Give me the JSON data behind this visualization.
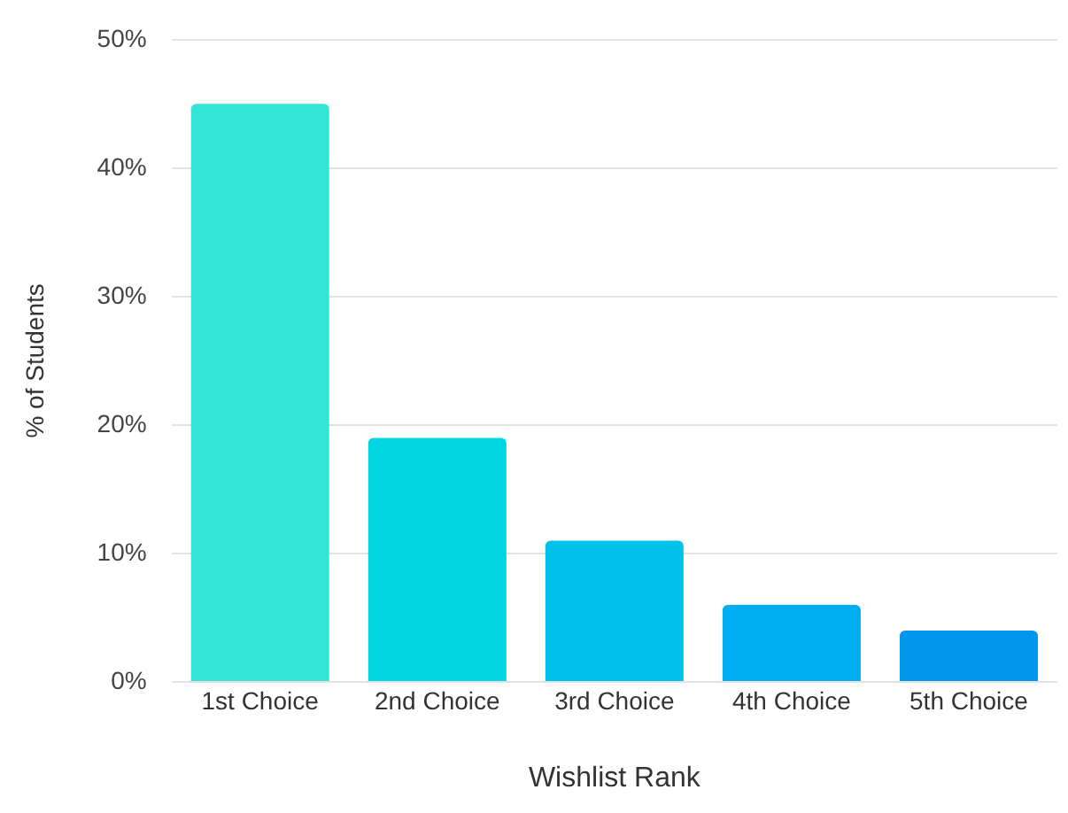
{
  "chart_data": {
    "type": "bar",
    "xlabel": "Wishlist Rank",
    "ylabel": "% of Students",
    "categories": [
      "1st Choice",
      "2nd Choice",
      "3rd Choice",
      "4th Choice",
      "5th Choice"
    ],
    "values": [
      45,
      19,
      11,
      6,
      4
    ],
    "colors": [
      "#33e6d6",
      "#00d6e2",
      "#00c2ea",
      "#00adf0",
      "#0096ec"
    ],
    "ylim": [
      0,
      50
    ],
    "yticks": [
      {
        "value": 0,
        "label": "0%"
      },
      {
        "value": 10,
        "label": "10%"
      },
      {
        "value": 20,
        "label": "20%"
      },
      {
        "value": 30,
        "label": "30%"
      },
      {
        "value": 40,
        "label": "40%"
      },
      {
        "value": 50,
        "label": "50%"
      }
    ],
    "grid": "y",
    "legend": false
  }
}
